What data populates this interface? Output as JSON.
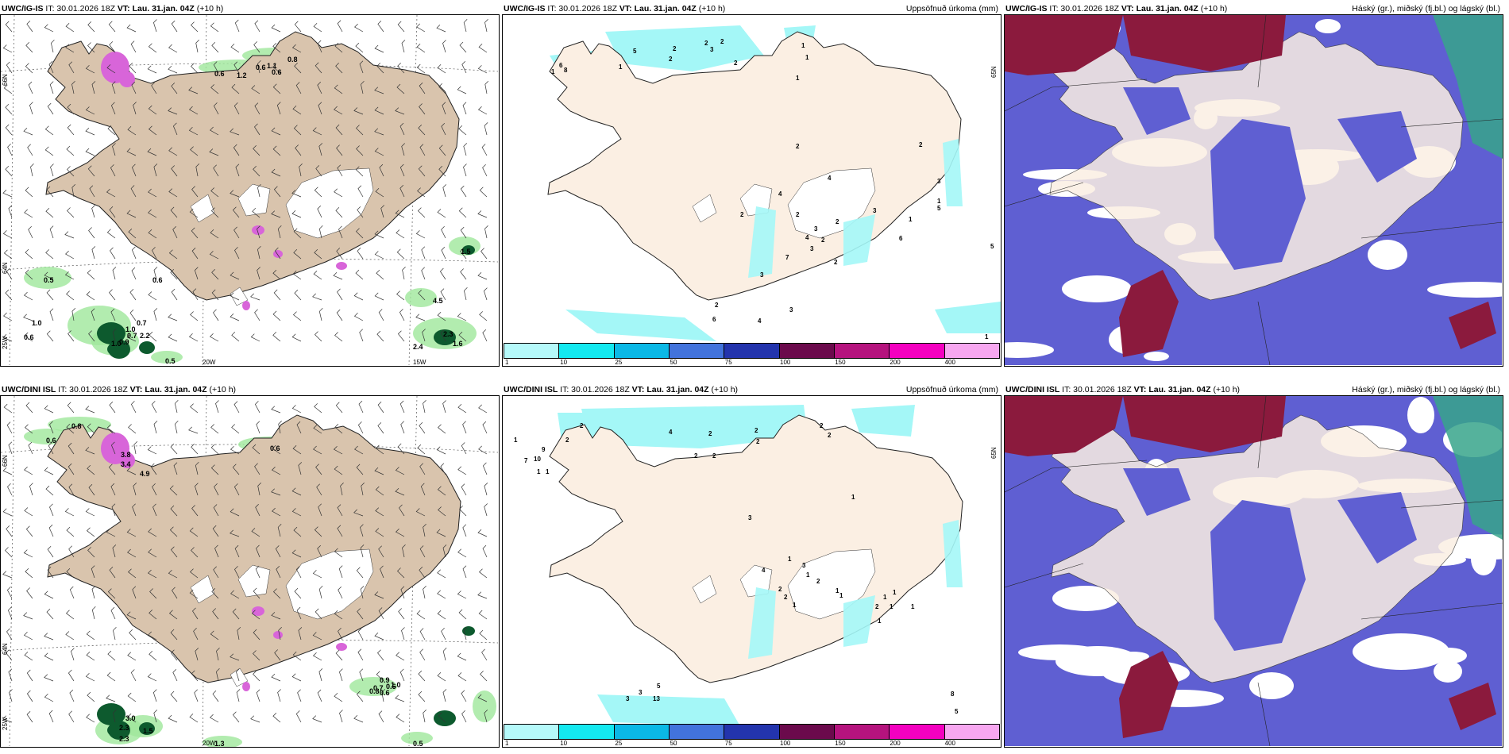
{
  "colors": {
    "land": "#d9c4ad",
    "land_light": "#fbefe3",
    "white": "#ffffff",
    "green": "#9fe79b",
    "dark_green": "#0d5a2e",
    "magenta": "#d865d9",
    "cyan": "#a4f7f7",
    "blue_cloud": "#5f5fd2",
    "dark_red": "#8b1a3d",
    "teal": "#37a48b"
  },
  "colorbar": {
    "colors": [
      "#b5f9fa",
      "#14e9f0",
      "#0bb8e6",
      "#4273dc",
      "#2334ad",
      "#6b0a4c",
      "#b5137e",
      "#f400c0",
      "#f7a7f0"
    ],
    "ticks": [
      "1",
      "10",
      "25",
      "50",
      "75",
      "100",
      "150",
      "200",
      "400"
    ]
  },
  "rows": [
    {
      "panels": [
        {
          "kind": "wind",
          "model": "UWC/IG-IS",
          "it": "IT: 30.01.2026 18Z",
          "vt": "VT: Lau. 31.jan. 04Z",
          "lead": "(+10 h)",
          "right": "",
          "labels": [
            "0.6",
            "1.2",
            "0.6",
            "1.1",
            "0.6",
            "0.8",
            "0.5",
            "0.6",
            "1.0",
            "0.7",
            "0.6",
            "1.0",
            "0.9",
            "0.7",
            "2.2",
            "1.0",
            "2.4",
            "2.3",
            "1.6",
            "0.5",
            "4.5",
            "1.5"
          ],
          "axes": {
            "lon1": "20W",
            "lon2": "15W",
            "lat_top": "66N",
            "lat_mid": "64N",
            "lat_bot": "25W"
          }
        },
        {
          "kind": "precip",
          "model": "UWC/IG-IS",
          "it": "IT: 30.01.2026 18Z",
          "vt": "VT: Lau. 31.jan. 04Z",
          "lead": "(+10 h)",
          "right": "Uppsöfnuð úrkoma (mm)",
          "labels": [
            "5",
            "2",
            "3",
            "2",
            "2",
            "2",
            "6",
            "8",
            "1",
            "1",
            "2",
            "1",
            "1",
            "1",
            "2",
            "4",
            "4",
            "2",
            "2",
            "4",
            "3",
            "3",
            "2",
            "2",
            "7",
            "6",
            "2",
            "4",
            "3",
            "3",
            "2",
            "1",
            "1",
            "3",
            "2",
            "6",
            "3",
            "5",
            "1",
            "5"
          ],
          "axes": {
            "lat": "65N"
          }
        },
        {
          "kind": "cloud",
          "model": "UWC/IG-IS",
          "it": "IT: 30.01.2026 18Z",
          "vt": "VT: Lau. 31.jan. 04Z",
          "lead": "(+10 h)",
          "right": "Háský (gr.), miðský (fj.bl.) og lágský (bl.)"
        }
      ]
    },
    {
      "panels": [
        {
          "kind": "wind",
          "model": "UWC/DINI ISL",
          "it": "IT: 30.01.2026 18Z",
          "vt": "VT: Lau. 31.jan. 04Z",
          "lead": "(+10 h)",
          "right": "",
          "labels": [
            "0.8",
            "0.6",
            "3.8",
            "3.4",
            "4.9",
            "0.6",
            "0.7",
            "0.9",
            "0.8",
            "0.6",
            "0.6",
            "1.0",
            "1.5",
            "2.3",
            "3.0",
            "2.3",
            "1.3",
            "0.5"
          ],
          "axes": {
            "lon1": "20W",
            "lon2": "",
            "lat_top": "66N",
            "lat_mid": "64N",
            "lat_bot": "25W"
          }
        },
        {
          "kind": "precip",
          "model": "UWC/DINI ISL",
          "it": "IT: 30.01.2026 18Z",
          "vt": "VT: Lau. 31.jan. 04Z",
          "lead": "(+10 h)",
          "right": "Uppsöfnuð úrkoma (mm)",
          "labels": [
            "2",
            "2",
            "1",
            "9",
            "4",
            "10",
            "7",
            "1",
            "1",
            "2",
            "2",
            "2",
            "2",
            "2",
            "2",
            "2",
            "1",
            "3",
            "4",
            "3",
            "1",
            "2",
            "2",
            "1",
            "1",
            "2",
            "1",
            "1",
            "1",
            "2",
            "1",
            "1",
            "1",
            "1",
            "5",
            "13",
            "3",
            "3",
            "8",
            "5"
          ],
          "axes": {
            "lat": "65N"
          }
        },
        {
          "kind": "cloud",
          "model": "UWC/DINI ISL",
          "it": "IT: 30.01.2026 18Z",
          "vt": "VT: Lau. 31.jan. 04Z",
          "lead": "(+10 h)",
          "right": "Háský (gr.), miðský (fj.bl.) og lágský (bl.)"
        }
      ]
    }
  ]
}
